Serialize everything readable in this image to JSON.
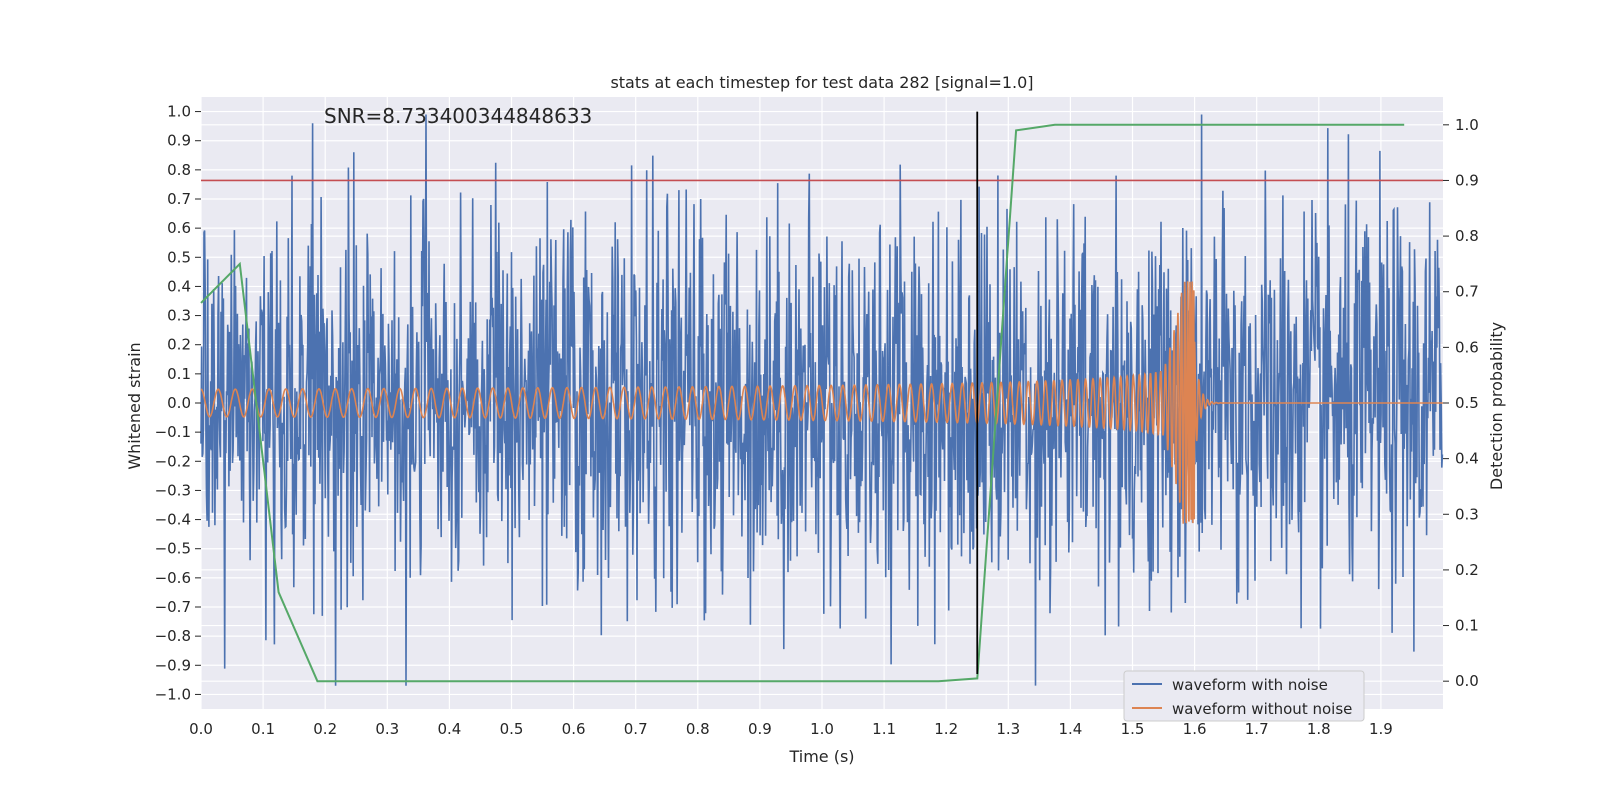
{
  "chart_data": {
    "type": "line",
    "title": "stats at each timestep for test data 282 [signal=1.0]",
    "annotation": "SNR=8.733400344848633",
    "xlabel": "Time (s)",
    "ylabel_left": "Whitened strain",
    "ylabel_right": "Detection probability",
    "xlim": [
      0.0,
      2.0
    ],
    "ylim_left": [
      -1.05,
      1.05
    ],
    "ylim_right": [
      -0.05,
      1.05
    ],
    "x_ticks": [
      "0.0",
      "0.1",
      "0.2",
      "0.3",
      "0.4",
      "0.5",
      "0.6",
      "0.7",
      "0.8",
      "0.9",
      "1.0",
      "1.1",
      "1.2",
      "1.3",
      "1.4",
      "1.5",
      "1.6",
      "1.7",
      "1.8",
      "1.9"
    ],
    "y_left_ticks": [
      "1.0",
      "0.9",
      "0.8",
      "0.7",
      "0.6",
      "0.5",
      "0.4",
      "0.3",
      "0.2",
      "0.1",
      "0.0",
      "−0.1",
      "−0.2",
      "−0.3",
      "−0.4",
      "−0.5",
      "−0.6",
      "−0.7",
      "−0.8",
      "−0.9",
      "−1.0"
    ],
    "y_right_ticks": [
      "1.0",
      "0.9",
      "0.8",
      "0.7",
      "0.6",
      "0.5",
      "0.4",
      "0.3",
      "0.2",
      "0.1",
      "0.0"
    ],
    "threshold_level_right": 0.9,
    "vertical_marker_time": 1.25,
    "series": [
      {
        "name": "waveform with noise",
        "color": "#4c72b0",
        "axis": "left",
        "kind": "noise",
        "noise_amplitude": 0.33,
        "sample_count": 2048
      },
      {
        "name": "waveform without noise",
        "color": "#dd8452",
        "axis": "left",
        "kind": "chirp",
        "peak_time": 1.6,
        "peak_amplitude": 0.42
      },
      {
        "name": "detection probability",
        "color": "#55a868",
        "axis": "right",
        "x": [
          0.0,
          0.0625,
          0.125,
          0.1875,
          0.25,
          0.5,
          0.75,
          1.0,
          1.1875,
          1.25,
          1.3125,
          1.375,
          1.5,
          1.75,
          1.9375
        ],
        "values": [
          0.68,
          0.75,
          0.16,
          0.0,
          0.0,
          0.0,
          0.0,
          0.0,
          0.0,
          0.005,
          0.99,
          1.0,
          1.0,
          1.0,
          1.0
        ]
      }
    ],
    "threshold_color": "#c44e52",
    "marker_color": "#000000",
    "legend": [
      "waveform with noise",
      "waveform without noise"
    ],
    "legend_position": "lower-right"
  }
}
